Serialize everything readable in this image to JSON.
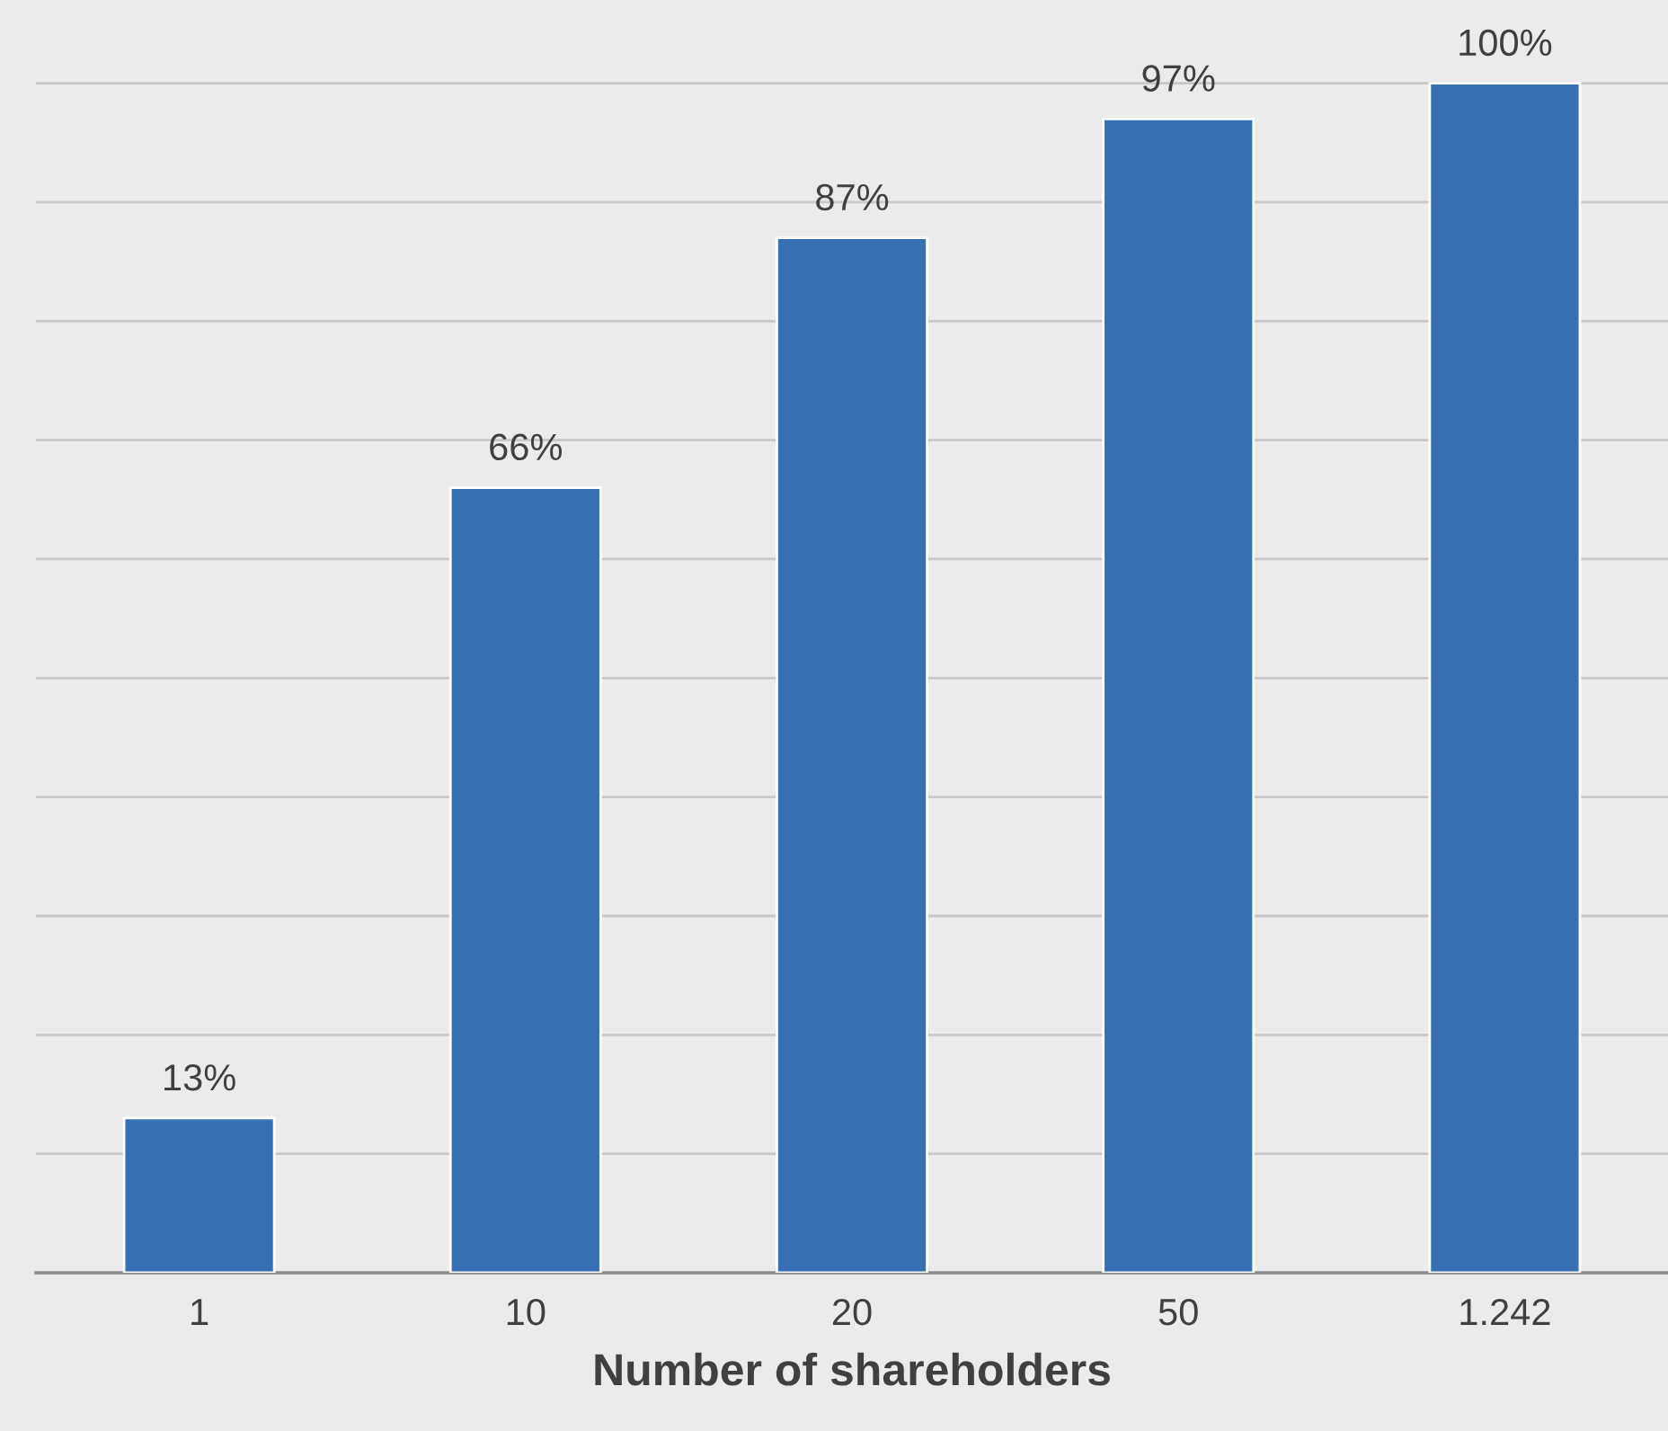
{
  "chart_data": {
    "type": "bar",
    "xlabel": "Number of shareholders",
    "categories": [
      "1",
      "10",
      "20",
      "50",
      "1.242"
    ],
    "values": [
      13,
      66,
      87,
      97,
      100
    ],
    "value_labels": [
      "13%",
      "66%",
      "87%",
      "97%",
      "100%"
    ],
    "color": "#3670b2",
    "ylim": [
      0,
      107
    ],
    "yticks": [
      0,
      10,
      20,
      30,
      40,
      50,
      60,
      70,
      80,
      90,
      100
    ],
    "tick_labels": "x",
    "grid": "y",
    "legend": false
  }
}
